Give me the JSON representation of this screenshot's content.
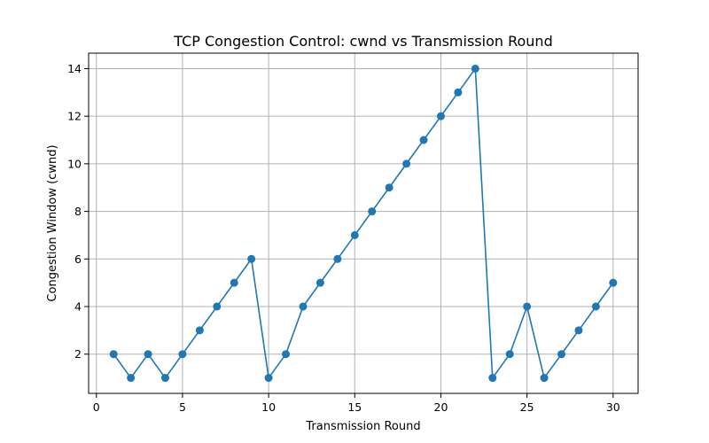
{
  "chart_data": {
    "type": "line",
    "title": "TCP Congestion Control: cwnd vs Transmission Round",
    "xlabel": "Transmission Round",
    "ylabel": "Congestion Window (cwnd)",
    "xlim": [
      -0.45,
      31.45
    ],
    "ylim": [
      0.35,
      14.65
    ],
    "xticks": [
      0,
      5,
      10,
      15,
      20,
      25,
      30
    ],
    "yticks": [
      2,
      4,
      6,
      8,
      10,
      12,
      14
    ],
    "grid": true,
    "series_color": "#1f77b4",
    "marker": "circle",
    "x": [
      1,
      2,
      3,
      4,
      5,
      6,
      7,
      8,
      9,
      10,
      11,
      12,
      13,
      14,
      15,
      16,
      17,
      18,
      19,
      20,
      21,
      22,
      23,
      24,
      25,
      26,
      27,
      28,
      29,
      30
    ],
    "y": [
      2,
      1,
      2,
      1,
      2,
      3,
      4,
      5,
      6,
      1,
      2,
      4,
      5,
      6,
      7,
      8,
      9,
      10,
      11,
      12,
      13,
      14,
      1,
      2,
      4,
      1,
      2,
      3,
      4,
      5
    ]
  }
}
